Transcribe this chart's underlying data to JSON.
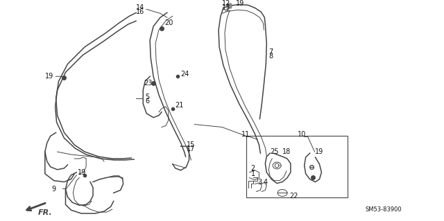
{
  "bg_color": "#ffffff",
  "fig_width": 6.4,
  "fig_height": 3.19,
  "diagram_code": "SM53-83900",
  "line_color": "#444444",
  "text_color": "#111111",
  "font_size": 7.0
}
